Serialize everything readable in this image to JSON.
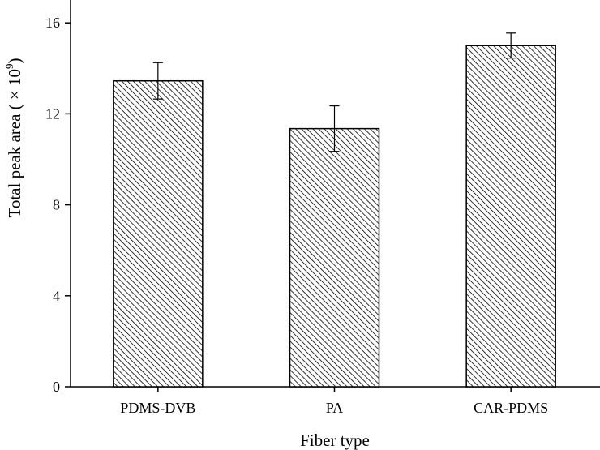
{
  "chart_data": {
    "type": "bar",
    "categories": [
      "PDMS-DVB",
      "PA",
      "CAR-PDMS"
    ],
    "values": [
      13.45,
      11.35,
      15.0
    ],
    "error": [
      0.8,
      1.0,
      0.55
    ],
    "xlabel": "Fiber type",
    "ylabel": {
      "text": "Total peak area ( × 10",
      "superscript": "9",
      "suffix": ")"
    },
    "ylim": [
      0,
      17
    ],
    "yticks": [
      0,
      4,
      8,
      12,
      16
    ],
    "ytick_labels": [
      "0",
      "4",
      "8",
      "12",
      "16"
    ],
    "bar_pattern": "diagonal-hatch",
    "bar_stroke_color": "#000000",
    "bar_fill_color": "#ffffff",
    "grid": false,
    "legend": "none"
  }
}
